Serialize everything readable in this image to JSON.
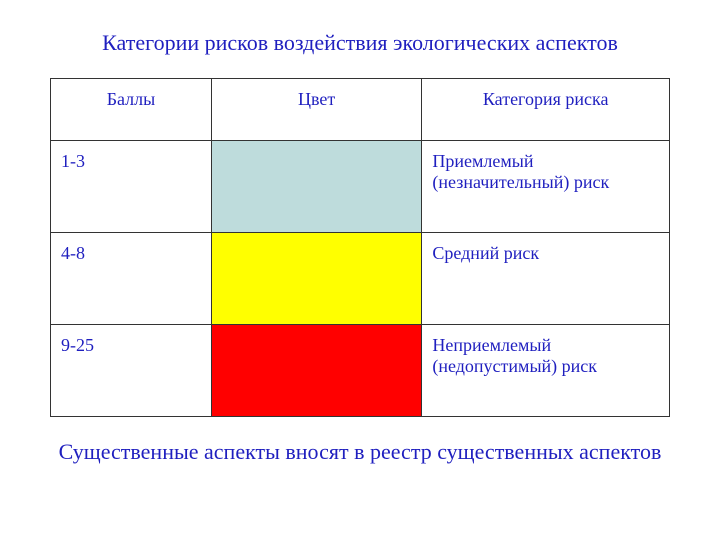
{
  "title": {
    "text": "Категории рисков воздействия экологических аспектов",
    "color": "#1f1fbf"
  },
  "table": {
    "border_color": "#333333",
    "header_text_color": "#1f1fbf",
    "body_text_color": "#1f1fbf",
    "headers": {
      "points": "Баллы",
      "color": "Цвет",
      "category": "Категория риска"
    },
    "rows": [
      {
        "points": "1-3",
        "color": "#bedcdc",
        "category": "Приемлемый (незначительный) риск"
      },
      {
        "points": "4-8",
        "color": "#ffff00",
        "category": "Средний риск"
      },
      {
        "points": "9-25",
        "color": "#ff0000",
        "category": "Неприемлемый (недопустимый) риск"
      }
    ]
  },
  "footer": {
    "text": "Существенные аспекты вносят в реестр существенных аспектов",
    "color": "#1f1fbf"
  }
}
